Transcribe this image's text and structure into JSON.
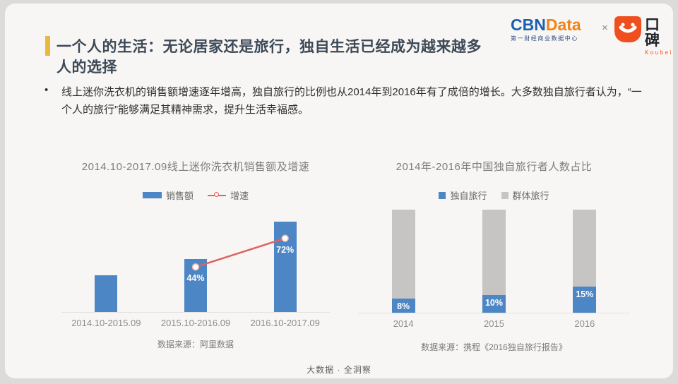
{
  "page": {
    "title_line1": "一个人的生活：无论居家还是旅行，独自生活已经成为越来越多",
    "title_line2": "人的选择",
    "bullet": "•",
    "bullet_text": "线上迷你洗衣机的销售额增速逐年增高，独自旅行的比例也从2014年到2016年有了成倍的增长。大多数独自旅行者认为，“一个人的旅行”能够满足其精神需求，提升生活幸福感。",
    "footer": "大数据 · 全洞察"
  },
  "header": {
    "cbndata": {
      "part1": "CBN",
      "part2": "Data",
      "subtitle": "第一财经商业数据中心"
    },
    "separator": "×",
    "koubei": {
      "name": "口碑",
      "latin": "Koubei"
    }
  },
  "colors": {
    "accent_yellow": "#e9b83e",
    "bar_blue": "#4c86c4",
    "bar_gray": "#c6c5c4",
    "line_red": "#e2615a",
    "cbn_blue": "#1b61ae",
    "cbn_orange": "#f08418",
    "koubei_orange": "#ee4f1d"
  },
  "chart_data": [
    {
      "type": "bar",
      "subtype": "bar-with-line",
      "title": "2014.10-2017.09线上迷你洗衣机销售额及增速",
      "categories": [
        "2014.10-2015.09",
        "2015.10-2016.09",
        "2016.10-2017.09"
      ],
      "series": [
        {
          "name": "销售额",
          "type": "bar",
          "values": [
            100,
            144,
            248
          ],
          "unit": "relative index (no value axis shown)",
          "color": "#4c86c4"
        },
        {
          "name": "增速",
          "type": "line",
          "values": [
            null,
            44,
            72
          ],
          "labels": [
            "",
            "44%",
            "72%"
          ],
          "unit": "%",
          "color": "#e2615a"
        }
      ],
      "bar_ylim": [
        0,
        280
      ],
      "line_ylim": [
        0,
        100
      ],
      "grid": false,
      "legend_position": "top",
      "source": "数据来源：阿里数据"
    },
    {
      "type": "bar",
      "subtype": "stacked-100",
      "title": "2014年-2016年中国独自旅行者人数占比",
      "categories": [
        "2014",
        "2015",
        "2016"
      ],
      "series": [
        {
          "name": "独自旅行",
          "values": [
            8,
            10,
            15
          ],
          "labels": [
            "8%",
            "10%",
            "15%"
          ],
          "unit": "%",
          "color": "#4c86c4"
        },
        {
          "name": "群体旅行",
          "values": [
            92,
            90,
            85
          ],
          "unit": "%",
          "color": "#c6c5c4"
        }
      ],
      "ylim": [
        0,
        100
      ],
      "grid": false,
      "legend_position": "top",
      "source": "数据来源：携程《2016独自旅行报告》"
    }
  ]
}
